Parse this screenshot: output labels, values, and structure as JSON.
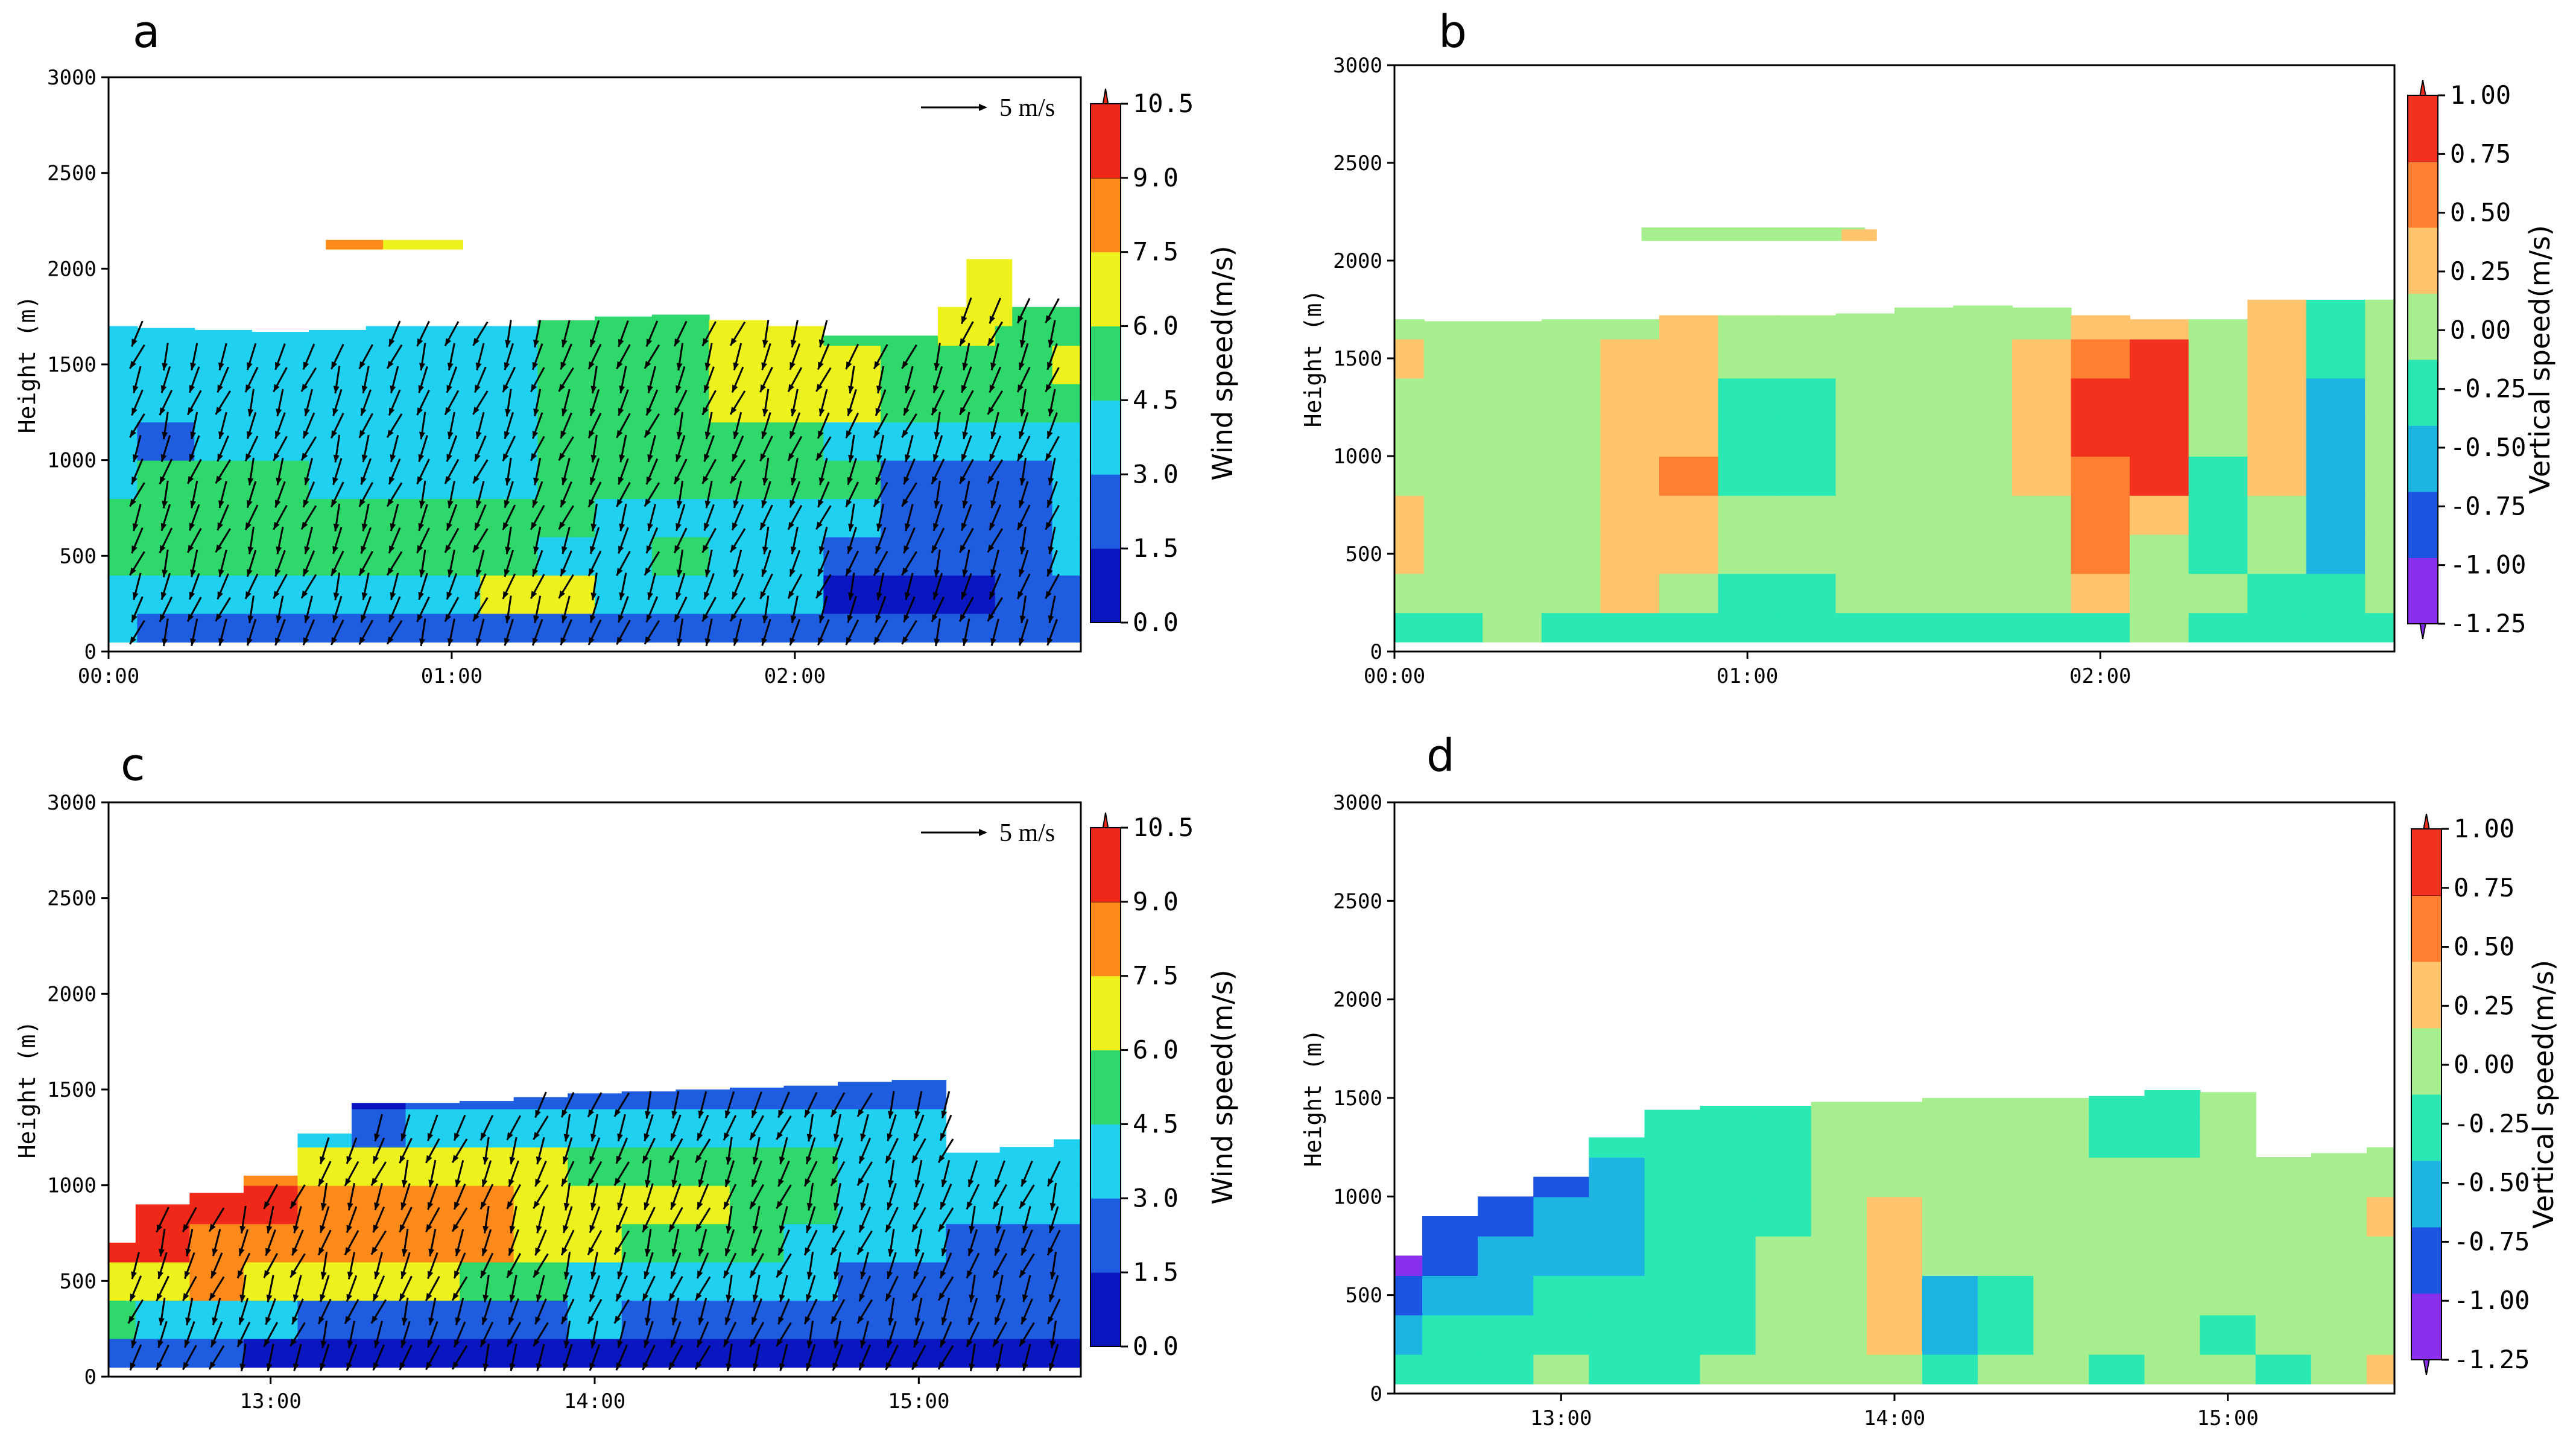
{
  "figure": {
    "panel_labels": [
      "a",
      "b",
      "c",
      "d"
    ]
  },
  "palettes": {
    "wind": [
      "#0a16c0",
      "#1f5de0",
      "#1fd0f0",
      "#2fd86a",
      "#eef21c",
      "#ff8a1a",
      "#f0281a"
    ],
    "vertical": [
      "#8a2ff0",
      "#1b54e2",
      "#1db4e2",
      "#29e8b4",
      "#a6ee8e",
      "#ffc46c",
      "#ff7f32",
      "#f2311e"
    ]
  },
  "chart_data": [
    {
      "id": "a",
      "type": "heatmap",
      "variable": "Wind speed",
      "title": "",
      "xlabel": "",
      "ylabel": "Height (m)",
      "xlim": [
        0,
        170
      ],
      "ylim": [
        0,
        3000
      ],
      "xticks": [
        {
          "v": 0,
          "label": "00:00"
        },
        {
          "v": 60,
          "label": "01:00"
        },
        {
          "v": 120,
          "label": "02:00"
        }
      ],
      "yticks": [
        0,
        500,
        1000,
        1500,
        2000,
        2500,
        3000
      ],
      "colorbar": {
        "label": "Wind speed(m/s)",
        "ticks": [
          "0.0",
          "1.5",
          "3.0",
          "4.5",
          "6.0",
          "7.5",
          "9.0",
          "10.5"
        ],
        "palette": "wind"
      },
      "reference_vector": "5 m/s",
      "columns": [
        0,
        10,
        20,
        30,
        40,
        50,
        60,
        70,
        80,
        90,
        100,
        110,
        120,
        130,
        140,
        150,
        160,
        170
      ],
      "top": [
        1700,
        1690,
        1680,
        1670,
        1680,
        1700,
        1700,
        1700,
        1730,
        1750,
        1760,
        1730,
        1700,
        1650,
        1650,
        2070,
        2100,
        2120
      ],
      "heights": [
        100,
        300,
        500,
        700,
        900,
        1100,
        1300,
        1500,
        1700
      ],
      "classes": [
        [
          2,
          1,
          1,
          1,
          1,
          1,
          1,
          1,
          1,
          1,
          1,
          1,
          1,
          1,
          1,
          1,
          1,
          1
        ],
        [
          2,
          2,
          2,
          2,
          2,
          2,
          2,
          4,
          4,
          2,
          2,
          2,
          2,
          0,
          0,
          0,
          1,
          1
        ],
        [
          3,
          3,
          3,
          3,
          3,
          3,
          3,
          3,
          2,
          2,
          3,
          2,
          2,
          1,
          1,
          1,
          1,
          2
        ],
        [
          3,
          3,
          3,
          3,
          3,
          3,
          3,
          3,
          3,
          2,
          2,
          2,
          2,
          2,
          1,
          1,
          1,
          2
        ],
        [
          2,
          3,
          3,
          3,
          2,
          2,
          2,
          2,
          3,
          3,
          3,
          3,
          3,
          3,
          1,
          1,
          1,
          2
        ],
        [
          2,
          1,
          2,
          2,
          2,
          2,
          2,
          2,
          3,
          3,
          3,
          3,
          3,
          2,
          2,
          2,
          2,
          2
        ],
        [
          2,
          2,
          2,
          2,
          2,
          2,
          2,
          2,
          3,
          3,
          3,
          4,
          4,
          4,
          3,
          3,
          3,
          3
        ],
        [
          2,
          2,
          2,
          2,
          2,
          2,
          2,
          2,
          3,
          3,
          3,
          4,
          4,
          4,
          3,
          3,
          3,
          4
        ],
        [
          2,
          2,
          2,
          2,
          2,
          2,
          2,
          2,
          3,
          3,
          3,
          4,
          4,
          3,
          3,
          4,
          3,
          3
        ]
      ],
      "islands": [
        {
          "t0": 38,
          "t1": 62,
          "h0": 2100,
          "h1": 2150,
          "cls": 4
        },
        {
          "t0": 38,
          "t1": 48,
          "h0": 2100,
          "h1": 2150,
          "cls": 5
        },
        {
          "t0": 150,
          "t1": 158,
          "h0": 1700,
          "h1": 2050,
          "cls": 4
        }
      ],
      "arrows": {
        "angle_deg": 250,
        "rows_from_h": 100,
        "row_step_h": 120,
        "col_step_t": 5
      }
    },
    {
      "id": "b",
      "type": "heatmap",
      "variable": "Vertical speed",
      "title": "",
      "xlabel": "",
      "ylabel": "Height (m)",
      "xlim": [
        0,
        170
      ],
      "ylim": [
        0,
        3000
      ],
      "xticks": [
        {
          "v": 0,
          "label": "00:00"
        },
        {
          "v": 60,
          "label": "01:00"
        },
        {
          "v": 120,
          "label": "02:00"
        }
      ],
      "yticks": [
        0,
        500,
        1000,
        1500,
        2000,
        2500,
        3000
      ],
      "colorbar": {
        "label": "Vertical speed(m/s)",
        "ticks": [
          "-1.25",
          "-1.00",
          "-0.75",
          "-0.50",
          "-0.25",
          "0.00",
          "0.25",
          "0.50",
          "0.75",
          "1.00"
        ],
        "palette": "vertical"
      },
      "columns": [
        0,
        10,
        20,
        30,
        40,
        50,
        60,
        70,
        80,
        90,
        100,
        110,
        120,
        130,
        140,
        150,
        160,
        170
      ],
      "top": [
        1700,
        1690,
        1690,
        1700,
        1700,
        1720,
        1720,
        1720,
        1730,
        1760,
        1770,
        1760,
        1720,
        1700,
        1700,
        2070,
        2120,
        2130
      ],
      "heights": [
        100,
        300,
        500,
        700,
        900,
        1100,
        1300,
        1500,
        1700
      ],
      "classes": [
        [
          3,
          3,
          4,
          3,
          3,
          3,
          3,
          3,
          3,
          3,
          3,
          3,
          3,
          4,
          3,
          3,
          3,
          3
        ],
        [
          4,
          4,
          4,
          4,
          5,
          4,
          3,
          3,
          4,
          4,
          4,
          4,
          5,
          4,
          4,
          3,
          3,
          4
        ],
        [
          5,
          4,
          4,
          4,
          5,
          5,
          4,
          4,
          4,
          4,
          4,
          4,
          6,
          4,
          3,
          4,
          2,
          4
        ],
        [
          5,
          4,
          4,
          4,
          5,
          5,
          4,
          4,
          4,
          4,
          4,
          4,
          6,
          5,
          3,
          4,
          2,
          4
        ],
        [
          4,
          4,
          4,
          4,
          5,
          6,
          3,
          3,
          4,
          4,
          4,
          5,
          6,
          7,
          3,
          5,
          2,
          4
        ],
        [
          4,
          4,
          4,
          4,
          5,
          5,
          3,
          3,
          4,
          4,
          4,
          5,
          7,
          7,
          4,
          5,
          2,
          4
        ],
        [
          4,
          4,
          4,
          4,
          5,
          5,
          3,
          3,
          4,
          4,
          4,
          5,
          7,
          7,
          4,
          5,
          2,
          4
        ],
        [
          5,
          4,
          4,
          4,
          5,
          5,
          4,
          4,
          4,
          4,
          4,
          5,
          6,
          7,
          4,
          5,
          3,
          4
        ],
        [
          4,
          4,
          4,
          4,
          4,
          5,
          4,
          4,
          4,
          4,
          4,
          4,
          5,
          5,
          4,
          5,
          3,
          4
        ]
      ],
      "islands": [
        {
          "t0": 42,
          "t1": 80,
          "h0": 2100,
          "h1": 2170,
          "cls": 4
        },
        {
          "t0": 76,
          "t1": 82,
          "h0": 2100,
          "h1": 2160,
          "cls": 5
        }
      ]
    },
    {
      "id": "c",
      "type": "heatmap",
      "variable": "Wind speed",
      "title": "",
      "xlabel": "",
      "ylabel": "Height (m)",
      "xlim": [
        750,
        930
      ],
      "ylim": [
        0,
        3000
      ],
      "xticks": [
        {
          "v": 780,
          "label": "13:00"
        },
        {
          "v": 840,
          "label": "14:00"
        },
        {
          "v": 900,
          "label": "15:00"
        }
      ],
      "yticks": [
        0,
        500,
        1000,
        1500,
        2000,
        2500,
        3000
      ],
      "colorbar": {
        "label": "Wind speed(m/s)",
        "ticks": [
          "0.0",
          "1.5",
          "3.0",
          "4.5",
          "6.0",
          "7.5",
          "9.0",
          "10.5"
        ],
        "palette": "wind"
      },
      "reference_vector": "5 m/s",
      "columns": [
        750,
        760,
        770,
        780,
        790,
        800,
        810,
        820,
        830,
        840,
        850,
        860,
        870,
        880,
        890,
        900,
        910,
        920,
        930
      ],
      "top": [
        700,
        900,
        960,
        1050,
        1270,
        1430,
        1430,
        1440,
        1460,
        1480,
        1490,
        1500,
        1510,
        1520,
        1540,
        1550,
        1170,
        1200,
        1240
      ],
      "heights": [
        100,
        300,
        500,
        700,
        900,
        1100,
        1300,
        1500
      ],
      "classes": [
        [
          1,
          1,
          1,
          0,
          0,
          0,
          0,
          0,
          0,
          0,
          0,
          0,
          0,
          0,
          0,
          0,
          0,
          0,
          0
        ],
        [
          3,
          2,
          2,
          2,
          1,
          1,
          1,
          1,
          1,
          2,
          1,
          1,
          1,
          1,
          1,
          1,
          1,
          1,
          1
        ],
        [
          4,
          4,
          5,
          4,
          4,
          4,
          4,
          3,
          3,
          2,
          2,
          2,
          2,
          2,
          1,
          1,
          1,
          1,
          1
        ],
        [
          6,
          6,
          5,
          5,
          5,
          5,
          5,
          5,
          4,
          4,
          3,
          3,
          3,
          2,
          2,
          2,
          1,
          1,
          1
        ],
        [
          6,
          6,
          6,
          6,
          5,
          5,
          5,
          5,
          4,
          4,
          4,
          4,
          3,
          3,
          2,
          2,
          2,
          2,
          2
        ],
        [
          6,
          6,
          6,
          5,
          4,
          4,
          4,
          4,
          4,
          3,
          3,
          3,
          3,
          3,
          2,
          2,
          2,
          2,
          2
        ],
        [
          6,
          6,
          5,
          4,
          2,
          1,
          2,
          2,
          2,
          2,
          2,
          2,
          2,
          2,
          2,
          2,
          2,
          2,
          2
        ],
        [
          6,
          6,
          5,
          4,
          1,
          0,
          1,
          1,
          1,
          1,
          1,
          1,
          1,
          1,
          1,
          1,
          2,
          2,
          2
        ]
      ],
      "islands": [],
      "arrows": {
        "angle_deg": 250,
        "rows_from_h": 100,
        "row_step_h": 120,
        "col_step_t": 5
      }
    },
    {
      "id": "d",
      "type": "heatmap",
      "variable": "Vertical speed",
      "title": "",
      "xlabel": "",
      "ylabel": "Height (m)",
      "xlim": [
        750,
        930
      ],
      "ylim": [
        0,
        3000
      ],
      "xticks": [
        {
          "v": 780,
          "label": "13:00"
        },
        {
          "v": 840,
          "label": "14:00"
        },
        {
          "v": 900,
          "label": "15:00"
        }
      ],
      "yticks": [
        0,
        500,
        1000,
        1500,
        2000,
        2500,
        3000
      ],
      "colorbar": {
        "label": "Vertical speed(m/s)",
        "ticks": [
          "-1.25",
          "-1.00",
          "-0.75",
          "-0.50",
          "-0.25",
          "0.00",
          "0.25",
          "0.50",
          "0.75",
          "1.00"
        ],
        "palette": "vertical"
      },
      "columns": [
        750,
        760,
        770,
        780,
        790,
        800,
        810,
        820,
        830,
        840,
        850,
        860,
        870,
        880,
        890,
        900,
        910,
        920,
        930
      ],
      "top": [
        700,
        900,
        1000,
        1100,
        1300,
        1440,
        1460,
        1460,
        1480,
        1480,
        1500,
        1500,
        1500,
        1510,
        1540,
        1530,
        1200,
        1220,
        1250
      ],
      "heights": [
        100,
        300,
        500,
        700,
        900,
        1100,
        1300,
        1500
      ],
      "classes": [
        [
          3,
          3,
          3,
          4,
          3,
          3,
          4,
          4,
          4,
          4,
          3,
          4,
          4,
          3,
          4,
          4,
          3,
          4,
          5
        ],
        [
          2,
          3,
          3,
          3,
          3,
          3,
          3,
          4,
          4,
          5,
          2,
          3,
          4,
          4,
          4,
          3,
          4,
          4,
          4
        ],
        [
          1,
          2,
          2,
          3,
          3,
          3,
          3,
          4,
          4,
          5,
          2,
          3,
          4,
          4,
          4,
          4,
          4,
          4,
          4
        ],
        [
          0,
          1,
          2,
          2,
          2,
          3,
          3,
          4,
          4,
          5,
          4,
          4,
          4,
          4,
          4,
          4,
          4,
          4,
          4
        ],
        [
          1,
          1,
          1,
          2,
          2,
          3,
          3,
          3,
          4,
          5,
          4,
          4,
          4,
          4,
          4,
          4,
          4,
          4,
          5
        ],
        [
          1,
          1,
          1,
          1,
          2,
          3,
          3,
          3,
          4,
          4,
          4,
          4,
          4,
          4,
          4,
          4,
          4,
          4,
          4
        ],
        [
          1,
          1,
          1,
          2,
          3,
          3,
          3,
          3,
          4,
          4,
          4,
          4,
          4,
          3,
          3,
          4,
          4,
          4,
          4
        ],
        [
          1,
          1,
          1,
          2,
          3,
          3,
          3,
          3,
          4,
          4,
          4,
          4,
          4,
          3,
          3,
          4,
          4,
          4,
          4
        ]
      ],
      "islands": []
    }
  ]
}
